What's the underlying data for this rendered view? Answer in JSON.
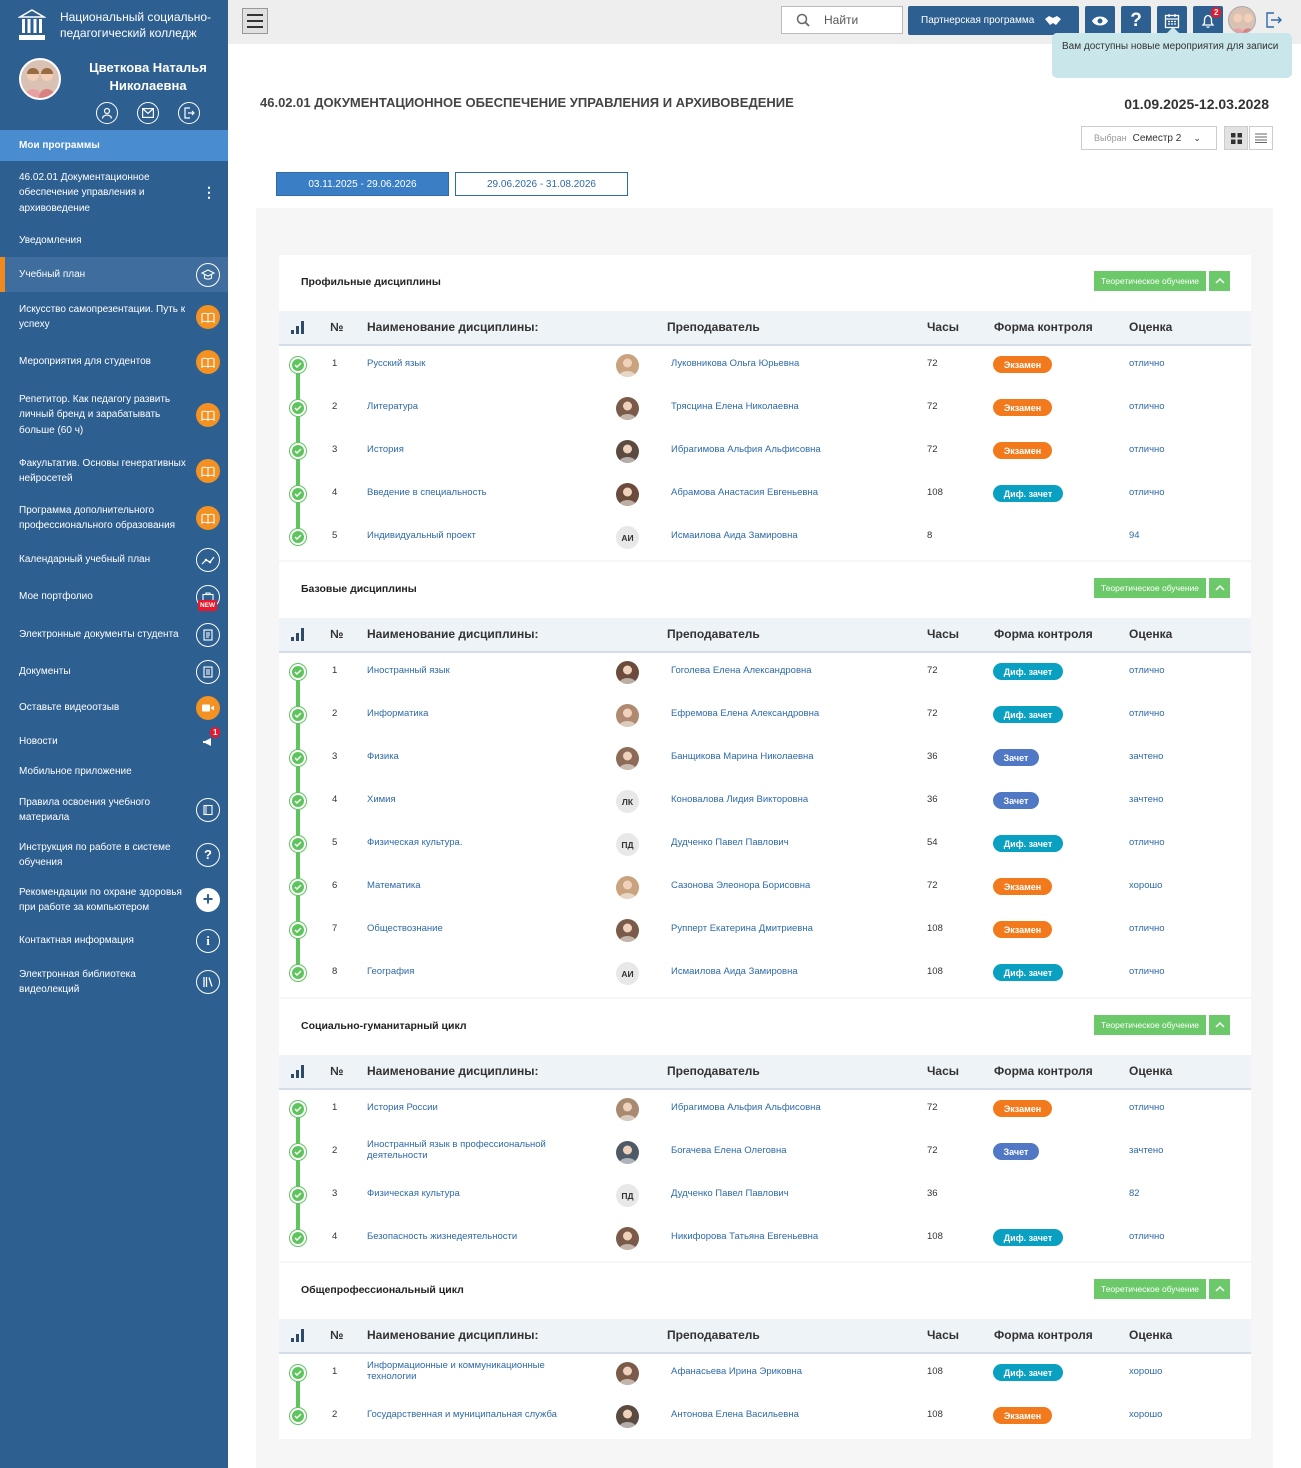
{
  "colors": {
    "sidebar": "#2e5f91",
    "accent_orange": "#f39222",
    "exam": "#f37a1c",
    "diff_credit": "#0aa0c2",
    "credit": "#5178c4",
    "green": "#5ec55e"
  },
  "sidebar": {
    "college": "Национальный социально-педагогический колледж",
    "user_name": "Цветкова Наталья Николаевна",
    "items": [
      {
        "label": "Мои программы"
      },
      {
        "label": "46.02.01 Документационное обеспечение управления и архивоведение"
      },
      {
        "label": "Уведомления"
      },
      {
        "label": "Учебный план"
      },
      {
        "label": "Искусство самопрезентации. Путь к успеху"
      },
      {
        "label": "Мероприятия для студентов"
      },
      {
        "label": "Репетитор. Как педагогу развить личный бренд и зарабатывать больше (60 ч)"
      },
      {
        "label": "Факультатив. Основы генеративных нейросетей"
      },
      {
        "label": "Программа дополнительного профессионального образования"
      },
      {
        "label": "Календарный учебный план"
      },
      {
        "label": "Мое портфолио",
        "badge": "NEW"
      },
      {
        "label": "Электронные документы студента"
      },
      {
        "label": "Документы"
      },
      {
        "label": "Оставьте видеоотзыв"
      },
      {
        "label": "Новости",
        "badge": "1"
      },
      {
        "label": "Мобильное приложение"
      },
      {
        "label": "Правила освоения учебного материала"
      },
      {
        "label": "Инструкция по работе в системе обучения"
      },
      {
        "label": "Рекомендации по охране здоровья при работе за компьютером"
      },
      {
        "label": "Контактная информация"
      },
      {
        "label": "Электронная библиотека видеолекций"
      }
    ]
  },
  "topbar": {
    "search_label": "Найти",
    "partner_label": "Партнерская программа",
    "notif_count": "2",
    "tooltip": "Вам доступны новые мероприятия для записи"
  },
  "program": {
    "title": "46.02.01 ДОКУМЕНТАЦИОННОЕ ОБЕСПЕЧЕНИЕ УПРАВЛЕНИЯ И АРХИВОВЕДЕНИЕ",
    "dates": "01.09.2025-12.03.2028",
    "semester_label": "Выбран",
    "semester_value": "Семестр 2",
    "periods": [
      "03.11.2025 - 29.06.2026",
      "29.06.2026 - 31.08.2026"
    ]
  },
  "table_headers": {
    "num": "№",
    "name": "Наименование дисциплины:",
    "teacher": "Преподаватель",
    "hours": "Часы",
    "control": "Форма контроля",
    "grade": "Оценка"
  },
  "theory_label": "Теоретическое обучение",
  "sections": [
    {
      "title": "Профильные дисциплины",
      "rows": [
        {
          "n": "1",
          "name": "Русский язык",
          "teacher": "Луковникова Ольга Юрьевна",
          "hours": "72",
          "control": "Экзамен",
          "grade": "отлично"
        },
        {
          "n": "2",
          "name": "Литература",
          "teacher": "Трясцина Елена Николаевна",
          "hours": "72",
          "control": "Экзамен",
          "grade": "отлично"
        },
        {
          "n": "3",
          "name": "История",
          "teacher": "Ибрагимова Альфия Альфисовна",
          "hours": "72",
          "control": "Экзамен",
          "grade": "отлично"
        },
        {
          "n": "4",
          "name": "Введение в специальность",
          "teacher": "Абрамова Анастасия Евгеньевна",
          "hours": "108",
          "control": "Диф. зачет",
          "grade": "отлично"
        },
        {
          "n": "5",
          "name": "Индивидуальный проект",
          "teacher": "Исмаилова Аида Замировна",
          "initials": "АИ",
          "hours": "8",
          "control": "",
          "grade": "94"
        }
      ]
    },
    {
      "title": "Базовые дисциплины",
      "rows": [
        {
          "n": "1",
          "name": "Иностранный язык",
          "teacher": "Гоголева Елена Александровна",
          "hours": "72",
          "control": "Диф. зачет",
          "grade": "отлично"
        },
        {
          "n": "2",
          "name": "Информатика",
          "teacher": "Ефремова Елена Александровна",
          "hours": "72",
          "control": "Диф. зачет",
          "grade": "отлично"
        },
        {
          "n": "3",
          "name": "Физика",
          "teacher": "Банщикова Марина Николаевна",
          "hours": "36",
          "control": "Зачет",
          "grade": "зачтено"
        },
        {
          "n": "4",
          "name": "Химия",
          "teacher": "Коновалова Лидия Викторовна",
          "initials": "ЛК",
          "hours": "36",
          "control": "Зачет",
          "grade": "зачтено"
        },
        {
          "n": "5",
          "name": "Физическая культура.",
          "teacher": "Дудченко Павел Павлович",
          "initials": "ПД",
          "hours": "54",
          "control": "Диф. зачет",
          "grade": "отлично"
        },
        {
          "n": "6",
          "name": "Математика",
          "teacher": "Сазонова Элеонора Борисовна",
          "hours": "72",
          "control": "Экзамен",
          "grade": "хорошо"
        },
        {
          "n": "7",
          "name": "Обществознание",
          "teacher": "Рупперт Екатерина Дмитриевна",
          "hours": "108",
          "control": "Экзамен",
          "grade": "отлично"
        },
        {
          "n": "8",
          "name": "География",
          "teacher": "Исмаилова Аида Замировна",
          "initials": "АИ",
          "hours": "108",
          "control": "Диф. зачет",
          "grade": "отлично"
        }
      ]
    },
    {
      "title": "Социально-гуманитарный цикл",
      "rows": [
        {
          "n": "1",
          "name": "История России",
          "teacher": "Ибрагимова Альфия Альфисовна",
          "hours": "72",
          "control": "Экзамен",
          "grade": "отлично"
        },
        {
          "n": "2",
          "name": "Иностранный язык в профессиональной деятельности",
          "teacher": "Богачева Елена Олеговна",
          "hours": "72",
          "control": "Зачет",
          "grade": "зачтено"
        },
        {
          "n": "3",
          "name": "Физическая культура",
          "teacher": "Дудченко Павел Павлович",
          "initials": "ПД",
          "hours": "36",
          "control": "",
          "grade": "82"
        },
        {
          "n": "4",
          "name": "Безопасность жизнедеятельности",
          "teacher": "Никифорова Татьяна Евгеньевна",
          "hours": "108",
          "control": "Диф. зачет",
          "grade": "отлично"
        }
      ]
    },
    {
      "title": "Общепрофессиональный цикл",
      "rows": [
        {
          "n": "1",
          "name": "Информационные и коммуникационные технологии",
          "teacher": "Афанасьева Ирина Эриковна",
          "hours": "108",
          "control": "Диф. зачет",
          "grade": "хорошо"
        },
        {
          "n": "2",
          "name": "Государственная и муниципальная служба",
          "teacher": "Антонова Елена Васильевна",
          "hours": "108",
          "control": "Экзамен",
          "grade": "хорошо"
        }
      ]
    }
  ]
}
